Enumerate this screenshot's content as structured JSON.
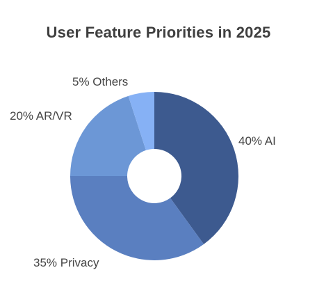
{
  "chart_data": {
    "type": "pie",
    "title": "User Feature Priorities in 2025",
    "donut": true,
    "categories": [
      "AI",
      "Privacy",
      "AR/VR",
      "Others"
    ],
    "values": [
      40,
      35,
      20,
      5
    ],
    "labels": [
      "40% AI",
      "35% Privacy",
      "20% AR/VR",
      "5% Others"
    ],
    "colors": [
      "#3d5a8f",
      "#5a7fc0",
      "#6c97d6",
      "#86b1f5"
    ],
    "start_angle_deg": 0,
    "direction": "clockwise",
    "legend": "none"
  }
}
